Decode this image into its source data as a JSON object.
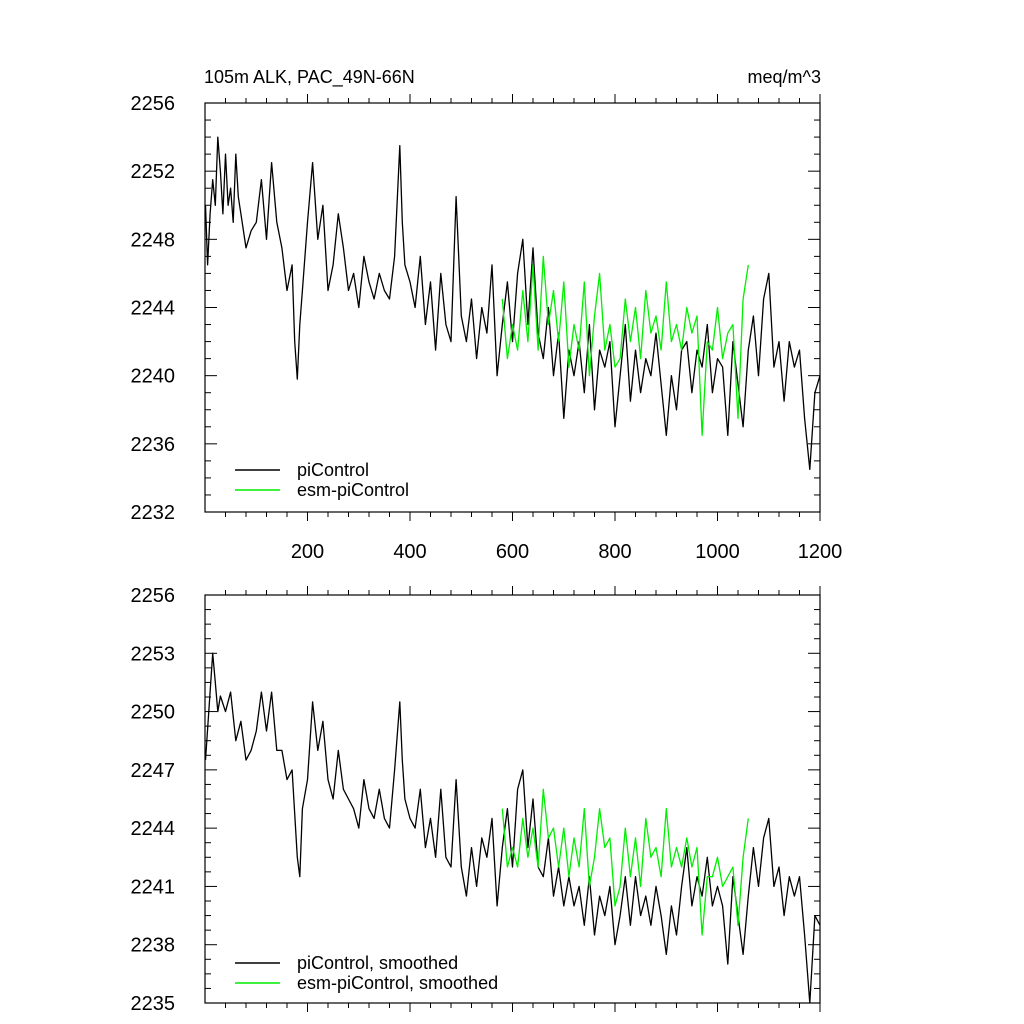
{
  "chart_data": [
    {
      "type": "line",
      "title_left": "105m ALK, PAC_49N-66N",
      "title_right": "meq/m^3",
      "xlim": [
        0,
        1200
      ],
      "ylim": [
        2232,
        2256
      ],
      "xticks": [
        200,
        400,
        600,
        800,
        1000,
        1200
      ],
      "yticks": [
        2232,
        2236,
        2240,
        2244,
        2248,
        2252,
        2256
      ],
      "legend_position": "bottom-left",
      "series": [
        {
          "name": "piControl",
          "color": "#000000",
          "x": [
            1,
            5,
            10,
            15,
            20,
            25,
            30,
            35,
            40,
            45,
            50,
            55,
            60,
            65,
            70,
            80,
            90,
            100,
            110,
            120,
            130,
            140,
            150,
            160,
            170,
            175,
            180,
            185,
            190,
            200,
            210,
            220,
            230,
            240,
            250,
            260,
            270,
            280,
            290,
            300,
            310,
            320,
            330,
            340,
            350,
            360,
            370,
            380,
            385,
            390,
            400,
            410,
            420,
            430,
            440,
            450,
            460,
            470,
            480,
            490,
            500,
            510,
            520,
            530,
            540,
            550,
            560,
            570,
            580,
            590,
            600,
            610,
            620,
            630,
            640,
            650,
            660,
            670,
            680,
            690,
            700,
            710,
            720,
            730,
            740,
            750,
            760,
            770,
            780,
            790,
            800,
            810,
            820,
            830,
            840,
            850,
            860,
            870,
            880,
            890,
            900,
            910,
            920,
            930,
            940,
            950,
            960,
            970,
            980,
            990,
            1000,
            1010,
            1020,
            1030,
            1040,
            1050,
            1060,
            1070,
            1080,
            1090,
            1100,
            1110,
            1120,
            1130,
            1140,
            1150,
            1160,
            1170,
            1180,
            1190,
            1200
          ],
          "y": [
            2250.0,
            2246.5,
            2249.5,
            2251.5,
            2250.0,
            2254.0,
            2252.0,
            2249.5,
            2253.0,
            2250.0,
            2251.0,
            2249.0,
            2253.0,
            2250.5,
            2249.5,
            2247.5,
            2248.5,
            2249.0,
            2251.5,
            2248.0,
            2252.5,
            2249.0,
            2247.5,
            2245.0,
            2246.5,
            2242.0,
            2239.8,
            2243.0,
            2245.0,
            2249.0,
            2252.5,
            2248.0,
            2250.0,
            2245.0,
            2246.5,
            2249.5,
            2247.5,
            2245.0,
            2246.0,
            2244.0,
            2247.0,
            2245.5,
            2244.5,
            2246.0,
            2245.0,
            2244.5,
            2247.0,
            2253.5,
            2249.0,
            2246.5,
            2245.5,
            2244.0,
            2247.0,
            2243.0,
            2245.5,
            2241.5,
            2246.0,
            2243.0,
            2242.0,
            2250.5,
            2243.5,
            2242.0,
            2244.5,
            2241.0,
            2244.0,
            2242.5,
            2246.5,
            2240.0,
            2243.0,
            2245.5,
            2242.0,
            2246.0,
            2248.0,
            2243.0,
            2247.5,
            2242.5,
            2241.0,
            2244.0,
            2240.0,
            2242.5,
            2237.5,
            2241.5,
            2240.0,
            2242.0,
            2239.0,
            2243.0,
            2238.0,
            2241.5,
            2240.5,
            2242.0,
            2237.0,
            2240.0,
            2243.0,
            2238.5,
            2241.5,
            2239.0,
            2241.0,
            2240.0,
            2242.5,
            2239.5,
            2236.5,
            2240.0,
            2238.0,
            2241.5,
            2242.0,
            2239.0,
            2241.5,
            2240.5,
            2243.0,
            2239.0,
            2241.0,
            2240.5,
            2236.5,
            2242.0,
            2239.5,
            2237.0,
            2241.5,
            2243.5,
            2240.0,
            2244.5,
            2246.0,
            2240.5,
            2242.0,
            2238.5,
            2242.0,
            2240.5,
            2241.5,
            2237.5,
            2234.5,
            2239.0,
            2240.0
          ]
        },
        {
          "name": "esm-piControl",
          "color": "#00ee00",
          "x": [
            580,
            590,
            600,
            610,
            620,
            630,
            640,
            650,
            660,
            670,
            680,
            690,
            700,
            710,
            720,
            730,
            740,
            750,
            760,
            770,
            780,
            790,
            800,
            810,
            820,
            830,
            840,
            850,
            860,
            870,
            880,
            890,
            900,
            910,
            920,
            930,
            940,
            950,
            960,
            970,
            980,
            990,
            1000,
            1010,
            1020,
            1030,
            1040,
            1050,
            1060
          ],
          "y": [
            2244.5,
            2241.0,
            2243.0,
            2241.5,
            2245.0,
            2242.0,
            2246.5,
            2241.5,
            2247.0,
            2243.0,
            2245.0,
            2242.0,
            2245.5,
            2240.5,
            2243.0,
            2241.5,
            2245.5,
            2240.0,
            2243.5,
            2246.0,
            2241.5,
            2243.0,
            2240.5,
            2241.0,
            2244.5,
            2242.0,
            2244.0,
            2241.0,
            2245.0,
            2242.5,
            2243.5,
            2241.5,
            2245.5,
            2242.0,
            2243.0,
            2241.5,
            2244.0,
            2242.5,
            2243.5,
            2236.5,
            2242.0,
            2241.5,
            2244.0,
            2241.0,
            2242.5,
            2243.0,
            2237.5,
            2244.5,
            2246.5
          ]
        }
      ]
    },
    {
      "type": "line",
      "xlim": [
        0,
        1200
      ],
      "ylim": [
        2235,
        2256
      ],
      "xticks": [
        200,
        400,
        600,
        800,
        1000,
        1200
      ],
      "yticks": [
        2235,
        2238,
        2241,
        2244,
        2247,
        2250,
        2253,
        2256
      ],
      "legend_position": "bottom-left",
      "series": [
        {
          "name": "piControl, smoothed",
          "color": "#000000",
          "x": [
            1,
            10,
            15,
            20,
            25,
            30,
            40,
            50,
            60,
            70,
            80,
            90,
            100,
            110,
            120,
            130,
            140,
            150,
            160,
            170,
            180,
            185,
            190,
            200,
            210,
            220,
            230,
            240,
            250,
            260,
            270,
            280,
            290,
            300,
            310,
            320,
            330,
            340,
            350,
            360,
            370,
            380,
            385,
            390,
            400,
            410,
            420,
            430,
            440,
            450,
            460,
            470,
            480,
            490,
            500,
            510,
            520,
            530,
            540,
            550,
            560,
            570,
            580,
            590,
            600,
            610,
            620,
            630,
            640,
            650,
            660,
            670,
            680,
            690,
            700,
            710,
            720,
            730,
            740,
            750,
            760,
            770,
            780,
            790,
            800,
            810,
            820,
            830,
            840,
            850,
            860,
            870,
            880,
            890,
            900,
            910,
            920,
            930,
            940,
            950,
            960,
            970,
            980,
            990,
            1000,
            1010,
            1020,
            1030,
            1040,
            1050,
            1060,
            1070,
            1080,
            1090,
            1100,
            1110,
            1120,
            1130,
            1140,
            1150,
            1160,
            1170,
            1180,
            1190,
            1200
          ],
          "y": [
            2247.5,
            2251.0,
            2253.0,
            2251.5,
            2250.0,
            2250.8,
            2250.0,
            2251.0,
            2248.5,
            2249.5,
            2247.5,
            2248.0,
            2249.0,
            2251.0,
            2249.0,
            2251.0,
            2248.0,
            2248.0,
            2246.5,
            2247.0,
            2242.5,
            2241.5,
            2245.0,
            2246.5,
            2250.5,
            2248.0,
            2249.5,
            2246.5,
            2245.5,
            2248.0,
            2246.0,
            2245.5,
            2245.0,
            2244.0,
            2246.5,
            2245.0,
            2244.5,
            2246.0,
            2244.5,
            2244.0,
            2247.0,
            2250.5,
            2247.5,
            2245.5,
            2244.5,
            2244.0,
            2246.0,
            2243.0,
            2244.5,
            2242.5,
            2246.0,
            2242.5,
            2242.0,
            2246.5,
            2242.0,
            2240.5,
            2243.0,
            2241.0,
            2243.5,
            2242.5,
            2244.5,
            2240.0,
            2243.0,
            2245.0,
            2242.0,
            2246.0,
            2247.0,
            2243.0,
            2245.5,
            2242.0,
            2241.5,
            2243.5,
            2240.5,
            2242.0,
            2240.0,
            2241.5,
            2240.0,
            2241.0,
            2239.0,
            2241.5,
            2238.5,
            2240.5,
            2239.5,
            2241.0,
            2238.0,
            2239.5,
            2241.5,
            2239.0,
            2241.5,
            2239.5,
            2240.5,
            2239.0,
            2241.0,
            2239.5,
            2237.5,
            2240.0,
            2238.5,
            2241.0,
            2243.0,
            2240.0,
            2241.5,
            2240.5,
            2242.5,
            2240.0,
            2241.0,
            2240.0,
            2237.0,
            2241.5,
            2239.5,
            2237.5,
            2240.5,
            2243.0,
            2241.0,
            2243.5,
            2244.5,
            2241.0,
            2242.0,
            2239.5,
            2241.5,
            2240.5,
            2241.5,
            2238.5,
            2235.0,
            2239.5,
            2239.0
          ]
        },
        {
          "name": "esm-piControl, smoothed",
          "color": "#00ee00",
          "x": [
            580,
            590,
            600,
            610,
            620,
            630,
            640,
            650,
            660,
            670,
            680,
            690,
            700,
            710,
            720,
            730,
            740,
            750,
            760,
            770,
            780,
            790,
            800,
            810,
            820,
            830,
            840,
            850,
            860,
            870,
            880,
            890,
            900,
            910,
            920,
            930,
            940,
            950,
            960,
            970,
            980,
            990,
            1000,
            1010,
            1020,
            1030,
            1040,
            1050,
            1060
          ],
          "y": [
            2245.0,
            2242.0,
            2243.0,
            2242.0,
            2244.5,
            2242.5,
            2244.0,
            2242.0,
            2246.0,
            2243.5,
            2244.0,
            2242.0,
            2244.0,
            2241.5,
            2243.5,
            2242.0,
            2245.0,
            2241.0,
            2242.5,
            2245.0,
            2243.0,
            2243.5,
            2240.0,
            2241.0,
            2244.0,
            2241.5,
            2243.5,
            2241.0,
            2244.5,
            2242.5,
            2243.0,
            2241.5,
            2245.0,
            2242.0,
            2243.0,
            2242.0,
            2243.5,
            2242.0,
            2243.0,
            2238.5,
            2241.5,
            2241.5,
            2242.5,
            2241.0,
            2241.5,
            2242.0,
            2239.0,
            2242.5,
            2244.5
          ]
        }
      ]
    }
  ]
}
